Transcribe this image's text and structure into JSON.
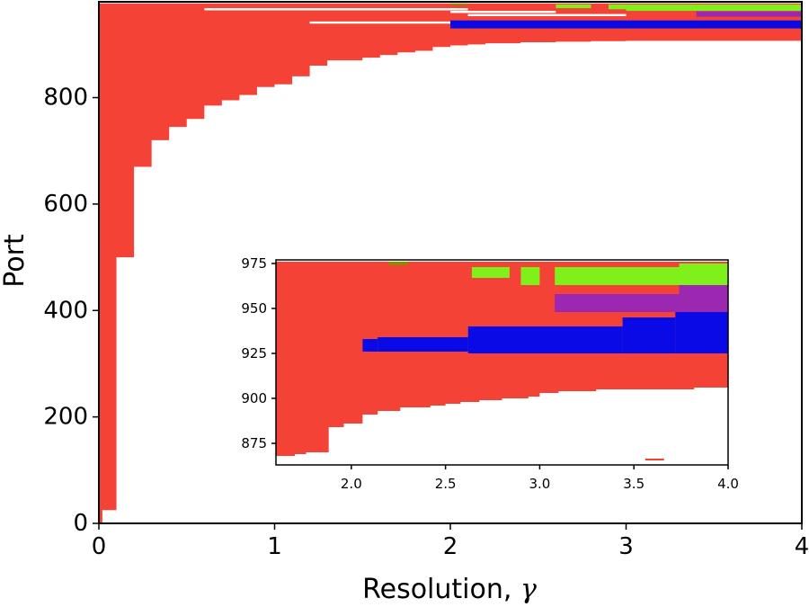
{
  "colors": {
    "red": "#f44336",
    "blue": "#0a0ae6",
    "green": "#80f01a",
    "purple": "#9c27b0",
    "olive": "#8b8b00"
  },
  "chart_data": [
    {
      "type": "area",
      "name": "main",
      "xlabel": "Resolution, ",
      "xlabel_symbol": "γ",
      "ylabel": "Port",
      "xlim": [
        0,
        4
      ],
      "ylim": [
        0,
        980
      ],
      "xticks": [
        "0",
        "1",
        "2",
        "3",
        "4"
      ],
      "yticks": [
        "0",
        "200",
        "400",
        "600",
        "800"
      ],
      "ytick_values": [
        0,
        200,
        400,
        600,
        800
      ],
      "red_lower_boundary": [
        [
          0.0,
          0
        ],
        [
          0.02,
          25
        ],
        [
          0.1,
          500
        ],
        [
          0.2,
          670
        ],
        [
          0.3,
          720
        ],
        [
          0.4,
          745
        ],
        [
          0.5,
          760
        ],
        [
          0.6,
          785
        ],
        [
          0.7,
          795
        ],
        [
          0.8,
          805
        ],
        [
          0.9,
          820
        ],
        [
          1.0,
          825
        ],
        [
          1.1,
          840
        ],
        [
          1.2,
          860
        ],
        [
          1.3,
          870
        ],
        [
          1.5,
          875
        ],
        [
          1.6,
          880
        ],
        [
          1.7,
          885
        ],
        [
          1.8,
          888
        ],
        [
          1.9,
          895
        ],
        [
          2.0,
          898
        ],
        [
          2.1,
          900
        ],
        [
          2.2,
          902
        ],
        [
          2.4,
          904
        ],
        [
          2.6,
          905
        ],
        [
          2.8,
          906
        ],
        [
          3.0,
          907
        ],
        [
          3.6,
          907
        ],
        [
          4.0,
          907
        ]
      ],
      "bands": [
        {
          "color": "red",
          "x": [
            0.0,
            4.0
          ],
          "y": [
            907,
            930
          ]
        },
        {
          "color": "red",
          "x": [
            0.0,
            2.0
          ],
          "y": [
            930,
            953
          ]
        },
        {
          "color": "blue",
          "x": [
            2.0,
            4.0
          ],
          "y": [
            930,
            945
          ]
        },
        {
          "color": "red",
          "x": [
            0.0,
            3.0
          ],
          "y": [
            953,
            958
          ]
        },
        {
          "color": "purple",
          "x": [
            3.4,
            4.0
          ],
          "y": [
            952,
            962
          ]
        },
        {
          "color": "red",
          "x": [
            0.0,
            2.0
          ],
          "y": [
            958,
            975
          ]
        },
        {
          "color": "green",
          "x": [
            3.0,
            4.0
          ],
          "y": [
            963,
            975
          ]
        },
        {
          "color": "green",
          "x": [
            2.6,
            2.8
          ],
          "y": [
            968,
            975
          ]
        },
        {
          "color": "green",
          "x": [
            2.9,
            3.0
          ],
          "y": [
            966,
            975
          ]
        },
        {
          "color": "olive",
          "x": [
            2.0,
            2.1
          ],
          "y": [
            974,
            977
          ]
        }
      ],
      "gaps": [
        {
          "x": [
            0.6,
            2.1
          ],
          "y": 966
        },
        {
          "x": [
            1.2,
            2.0
          ],
          "y": 941
        },
        {
          "x": [
            2.0,
            2.6
          ],
          "y": 961
        },
        {
          "x": [
            2.1,
            3.0
          ],
          "y": 955
        }
      ]
    },
    {
      "type": "area",
      "name": "inset",
      "xlim": [
        1.6,
        4.0
      ],
      "ylim": [
        863,
        977
      ],
      "xticks": [
        "2.0",
        "2.5",
        "3.0",
        "3.5",
        "4.0"
      ],
      "xtick_values": [
        2.0,
        2.5,
        3.0,
        3.5,
        4.0
      ],
      "yticks": [
        "875",
        "900",
        "925",
        "950",
        "975"
      ],
      "ytick_values": [
        875,
        900,
        925,
        950,
        975
      ],
      "red_lower_boundary": [
        [
          1.6,
          868
        ],
        [
          1.7,
          869
        ],
        [
          1.76,
          870
        ],
        [
          1.88,
          884
        ],
        [
          1.96,
          886
        ],
        [
          2.06,
          891
        ],
        [
          2.14,
          893
        ],
        [
          2.26,
          895
        ],
        [
          2.42,
          896
        ],
        [
          2.5,
          897
        ],
        [
          2.58,
          898
        ],
        [
          2.68,
          899
        ],
        [
          2.8,
          900
        ],
        [
          2.94,
          901
        ],
        [
          3.0,
          903
        ],
        [
          3.1,
          904
        ],
        [
          3.3,
          905
        ],
        [
          3.6,
          905
        ],
        [
          3.82,
          906
        ],
        [
          4.0,
          906
        ]
      ],
      "bands": [
        {
          "color": "red",
          "x": [
            1.6,
            4.0
          ],
          "y": [
            906,
            923
          ]
        },
        {
          "color": "red",
          "x": [
            1.6,
            2.06
          ],
          "y": [
            923,
            933
          ]
        },
        {
          "color": "blue",
          "x": [
            2.06,
            2.14
          ],
          "y": [
            926,
            933
          ]
        },
        {
          "color": "blue",
          "x": [
            2.14,
            2.62
          ],
          "y": [
            926,
            934
          ]
        },
        {
          "color": "blue",
          "x": [
            2.62,
            3.44
          ],
          "y": [
            925,
            940
          ]
        },
        {
          "color": "blue",
          "x": [
            3.44,
            3.72
          ],
          "y": [
            925,
            945
          ]
        },
        {
          "color": "blue",
          "x": [
            3.72,
            4.0
          ],
          "y": [
            925,
            948
          ]
        },
        {
          "color": "red",
          "x": [
            1.6,
            1.88
          ],
          "y": [
            933,
            937
          ]
        },
        {
          "color": "red",
          "x": [
            1.6,
            3.08
          ],
          "y": [
            948,
            960
          ]
        },
        {
          "color": "purple",
          "x": [
            3.08,
            4.0
          ],
          "y": [
            948,
            958
          ]
        },
        {
          "color": "purple",
          "x": [
            3.74,
            4.0
          ],
          "y": [
            958,
            963
          ]
        },
        {
          "color": "red",
          "x": [
            1.6,
            2.2
          ],
          "y": [
            966,
            975
          ]
        },
        {
          "color": "green",
          "x": [
            2.64,
            2.84
          ],
          "y": [
            967,
            973
          ]
        },
        {
          "color": "green",
          "x": [
            2.9,
            3.0
          ],
          "y": [
            963,
            973
          ]
        },
        {
          "color": "green",
          "x": [
            3.08,
            3.74
          ],
          "y": [
            963,
            973
          ]
        },
        {
          "color": "green",
          "x": [
            3.74,
            4.0
          ],
          "y": [
            963,
            975
          ]
        },
        {
          "color": "olive",
          "x": [
            2.2,
            2.3
          ],
          "y": [
            974,
            976
          ]
        }
      ],
      "lines": [
        {
          "color": "red",
          "x": [
            1.6,
            2.2
          ],
          "y": 938
        },
        {
          "color": "red",
          "x": [
            1.6,
            2.3
          ],
          "y": 944
        },
        {
          "color": "red",
          "x": [
            1.6,
            2.5
          ],
          "y": 963
        },
        {
          "color": "red",
          "x": [
            1.6,
            2.0
          ],
          "y": 968
        },
        {
          "color": "red",
          "x": [
            2.32,
            3.4
          ],
          "y": 975
        },
        {
          "color": "red",
          "x": [
            3.56,
            3.66
          ],
          "y": 866
        }
      ]
    }
  ]
}
